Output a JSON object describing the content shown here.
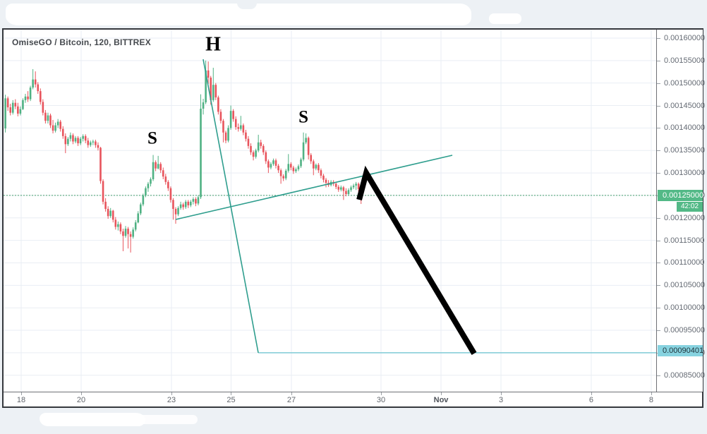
{
  "window": {
    "title": "OmiseGO / Bitcoin, 120, BITTREX"
  },
  "colors": {
    "page_bg": "#edf1f5",
    "chart_bg": "#ffffff",
    "grid": "#e9eef4",
    "up": "#4fb183",
    "down": "#e8545c",
    "wick_up": "#4fb183",
    "wick_down": "#e8545c",
    "dotted_last_price_line": "#43a06d",
    "trendline": "#2f9e8e",
    "target_line": "#7ecbd6",
    "arrow": "#000000",
    "letter": "#000000",
    "last_price_badge_bg": "#53b987",
    "countdown_badge_bg": "#53b987",
    "target_badge_bg": "#87d3e0",
    "axis_text": "#656b74"
  },
  "chart_data": {
    "type": "candlestick",
    "title": "OmiseGO / Bitcoin, 120, BITTREX",
    "symbol": "OmiseGO / Bitcoin",
    "interval": "120",
    "exchange": "BITTREX",
    "grid": true,
    "legend_position": "none",
    "ylim": [
      0.0008135,
      0.0016188
    ],
    "y_axis": {
      "side": "right",
      "ticks": [
        {
          "label": "0.00160000",
          "value": 0.0016
        },
        {
          "label": "0.00155000",
          "value": 0.00155
        },
        {
          "label": "0.00150000",
          "value": 0.0015
        },
        {
          "label": "0.00145000",
          "value": 0.00145
        },
        {
          "label": "0.00140000",
          "value": 0.0014
        },
        {
          "label": "0.00135000",
          "value": 0.00135
        },
        {
          "label": "0.00130000",
          "value": 0.0013
        },
        {
          "label": "0.00125000",
          "value": 0.00125
        },
        {
          "label": "0.00120000",
          "value": 0.0012
        },
        {
          "label": "0.00115000",
          "value": 0.00115
        },
        {
          "label": "0.00110000",
          "value": 0.0011
        },
        {
          "label": "0.00105000",
          "value": 0.00105
        },
        {
          "label": "0.00100000",
          "value": 0.001
        },
        {
          "label": "0.00095000",
          "value": 0.00095
        },
        {
          "label": "0.00090000",
          "value": 0.0009
        },
        {
          "label": "0.00085000",
          "value": 0.00085
        }
      ]
    },
    "x_axis": {
      "ticks": [
        {
          "label": "18",
          "pos": 0.027,
          "bold": false
        },
        {
          "label": "20",
          "pos": 0.1189,
          "bold": false
        },
        {
          "label": "23",
          "pos": 0.2573,
          "bold": false
        },
        {
          "label": "25",
          "pos": 0.3486,
          "bold": false
        },
        {
          "label": "27",
          "pos": 0.4411,
          "bold": false
        },
        {
          "label": "30",
          "pos": 0.5784,
          "bold": false
        },
        {
          "label": "Nov",
          "pos": 0.6703,
          "bold": true
        },
        {
          "label": "3",
          "pos": 0.7622,
          "bold": false
        },
        {
          "label": "6",
          "pos": 0.9005,
          "bold": false
        },
        {
          "label": "8",
          "pos": 0.9924,
          "bold": false
        }
      ]
    },
    "last_price": {
      "label": "0.00125000",
      "value": 0.00125,
      "countdown": "42:02"
    },
    "target_price": {
      "label": "0.00090401",
      "value": 0.00090401,
      "line_price": 0.0009,
      "line_start_pos": 0.3903
    },
    "annotations": {
      "letters": [
        {
          "text": "S",
          "pos": 0.2281,
          "price": 0.001377,
          "size": 25
        },
        {
          "text": "H",
          "pos": 0.3211,
          "price": 0.001586,
          "size": 28
        },
        {
          "text": "S",
          "pos": 0.4595,
          "price": 0.001424,
          "size": 25
        }
      ],
      "trendlines": [
        {
          "name": "neckline",
          "x1": 0.2638,
          "p1": 0.0011965,
          "x2": 0.6876,
          "p2": 0.0013394
        },
        {
          "name": "head-breakdown-line",
          "x1": 0.3059,
          "p1": 0.0015529,
          "x2": 0.3903,
          "p2": 0.0009
        }
      ],
      "arrow": {
        "points": [
          [
            0.5449,
            0.0012405
          ],
          [
            0.5557,
            0.0013001
          ],
          [
            0.7211,
            0.0008983
          ]
        ],
        "width": 8
      }
    },
    "candles": {
      "scale": 1e-05,
      "x0": 0.00281,
      "step": 0.003838,
      "body_w": 2.6,
      "ohlc": [
        [
          139.9,
          147.4,
          139.0,
          146.6
        ],
        [
          146.6,
          147.0,
          143.8,
          144.6
        ],
        [
          144.6,
          145.4,
          142.8,
          143.4
        ],
        [
          143.4,
          146.2,
          143.0,
          145.6
        ],
        [
          145.6,
          146.4,
          144.2,
          144.8
        ],
        [
          144.8,
          145.6,
          142.6,
          143.2
        ],
        [
          143.2,
          144.8,
          142.8,
          144.2
        ],
        [
          144.2,
          146.6,
          144.0,
          146.2
        ],
        [
          146.2,
          147.6,
          145.6,
          147.0
        ],
        [
          147.0,
          148.2,
          145.8,
          146.4
        ],
        [
          146.4,
          149.4,
          146.0,
          149.0
        ],
        [
          149.0,
          153.1,
          148.6,
          150.8
        ],
        [
          150.8,
          152.6,
          149.0,
          149.7
        ],
        [
          149.7,
          150.2,
          147.6,
          148.2
        ],
        [
          148.2,
          148.8,
          145.2,
          145.8
        ],
        [
          145.8,
          146.4,
          142.8,
          143.4
        ],
        [
          143.4,
          144.0,
          141.0,
          141.6
        ],
        [
          141.6,
          143.4,
          141.0,
          142.8
        ],
        [
          142.8,
          143.2,
          140.0,
          140.6
        ],
        [
          140.6,
          141.8,
          138.8,
          139.4
        ],
        [
          139.4,
          141.2,
          139.0,
          140.6
        ],
        [
          140.6,
          142.0,
          140.0,
          141.4
        ],
        [
          141.4,
          141.8,
          139.2,
          139.8
        ],
        [
          139.8,
          140.4,
          137.6,
          138.2
        ],
        [
          138.2,
          138.8,
          134.4,
          136.4
        ],
        [
          136.4,
          138.0,
          136.0,
          137.6
        ],
        [
          137.6,
          139.0,
          137.0,
          138.4
        ],
        [
          138.4,
          138.8,
          136.4,
          137.0
        ],
        [
          137.0,
          138.2,
          136.6,
          137.8
        ],
        [
          137.8,
          138.2,
          136.0,
          136.6
        ],
        [
          136.6,
          138.0,
          136.2,
          137.6
        ],
        [
          137.6,
          138.6,
          137.0,
          138.2
        ],
        [
          138.2,
          138.6,
          136.6,
          137.2
        ],
        [
          137.2,
          137.8,
          135.6,
          136.2
        ],
        [
          136.2,
          137.2,
          135.8,
          136.8
        ],
        [
          136.8,
          137.4,
          136.2,
          137.0
        ],
        [
          137.0,
          137.4,
          135.6,
          136.2
        ],
        [
          136.2,
          136.8,
          135.0,
          135.6
        ],
        [
          135.6,
          135.8,
          127.6,
          128.2
        ],
        [
          128.2,
          128.6,
          123.0,
          123.6
        ],
        [
          123.6,
          124.4,
          121.4,
          122.0
        ],
        [
          122.0,
          122.6,
          119.8,
          120.4
        ],
        [
          120.4,
          122.2,
          120.0,
          121.6
        ],
        [
          121.6,
          121.8,
          119.0,
          119.6
        ],
        [
          119.6,
          120.2,
          117.4,
          118.0
        ],
        [
          118.0,
          119.2,
          117.2,
          118.6
        ],
        [
          118.6,
          119.0,
          116.4,
          117.0
        ],
        [
          117.0,
          117.6,
          112.6,
          116.0
        ],
        [
          116.0,
          118.2,
          115.6,
          117.6
        ],
        [
          117.6,
          118.0,
          113.2,
          116.4
        ],
        [
          116.4,
          117.0,
          112.3,
          115.8
        ],
        [
          115.8,
          117.9,
          115.4,
          117.4
        ],
        [
          117.4,
          119.5,
          117.0,
          119.0
        ],
        [
          119.0,
          121.5,
          118.8,
          121.0
        ],
        [
          121.0,
          123.4,
          120.6,
          123.0
        ],
        [
          123.0,
          125.4,
          122.6,
          125.0
        ],
        [
          125.0,
          127.0,
          124.6,
          126.6
        ],
        [
          126.6,
          128.0,
          125.8,
          127.6
        ],
        [
          127.6,
          129.0,
          127.0,
          128.6
        ],
        [
          128.6,
          134.0,
          128.2,
          132.4
        ],
        [
          132.4,
          132.8,
          130.4,
          131.0
        ],
        [
          131.0,
          133.8,
          130.8,
          132.0
        ],
        [
          132.0,
          132.4,
          130.0,
          130.6
        ],
        [
          130.6,
          131.2,
          128.6,
          129.2
        ],
        [
          129.2,
          129.8,
          127.4,
          128.0
        ],
        [
          128.0,
          128.4,
          126.0,
          126.6
        ],
        [
          126.6,
          127.0,
          123.4,
          124.0
        ],
        [
          124.0,
          124.4,
          119.6,
          122.0
        ],
        [
          122.0,
          122.4,
          118.7,
          120.8
        ],
        [
          120.8,
          122.6,
          120.4,
          122.2
        ],
        [
          122.2,
          123.6,
          121.8,
          123.0
        ],
        [
          123.0,
          123.4,
          121.8,
          122.4
        ],
        [
          122.4,
          124.0,
          122.0,
          123.6
        ],
        [
          123.6,
          124.0,
          122.2,
          122.8
        ],
        [
          122.8,
          124.0,
          122.4,
          123.6
        ],
        [
          123.6,
          124.6,
          123.0,
          124.2
        ],
        [
          124.2,
          124.6,
          122.6,
          123.2
        ],
        [
          123.2,
          125.0,
          122.8,
          124.6
        ],
        [
          124.6,
          147.5,
          124.2,
          144.3
        ],
        [
          144.3,
          146.5,
          143.0,
          145.7
        ],
        [
          145.7,
          155.0,
          145.3,
          152.8
        ],
        [
          152.8,
          154.8,
          149.8,
          151.2
        ],
        [
          151.2,
          151.6,
          145.2,
          146.2
        ],
        [
          146.2,
          153.4,
          145.8,
          149.6
        ],
        [
          149.6,
          150.0,
          146.2,
          146.8
        ],
        [
          146.8,
          147.2,
          143.0,
          143.6
        ],
        [
          143.6,
          144.2,
          141.0,
          141.6
        ],
        [
          141.6,
          142.0,
          136.8,
          139.0
        ],
        [
          139.0,
          139.4,
          136.6,
          137.2
        ],
        [
          137.2,
          140.6,
          136.8,
          140.0
        ],
        [
          140.0,
          145.0,
          139.6,
          143.8
        ],
        [
          143.8,
          144.2,
          141.4,
          142.0
        ],
        [
          142.0,
          142.6,
          139.6,
          140.2
        ],
        [
          140.2,
          141.0,
          139.2,
          139.8
        ],
        [
          139.8,
          142.7,
          139.4,
          140.6
        ],
        [
          140.6,
          141.0,
          138.4,
          139.0
        ],
        [
          139.0,
          139.6,
          137.0,
          137.6
        ],
        [
          137.6,
          138.2,
          135.4,
          136.0
        ],
        [
          136.0,
          136.6,
          134.0,
          134.6
        ],
        [
          134.6,
          135.0,
          132.8,
          133.6
        ],
        [
          133.6,
          135.4,
          133.2,
          135.0
        ],
        [
          135.0,
          138.5,
          134.6,
          136.8
        ],
        [
          136.8,
          137.4,
          135.4,
          136.0
        ],
        [
          136.0,
          136.4,
          134.0,
          134.6
        ],
        [
          134.6,
          135.0,
          132.0,
          132.6
        ],
        [
          132.6,
          133.0,
          130.0,
          131.2
        ],
        [
          131.2,
          132.4,
          130.8,
          132.0
        ],
        [
          132.0,
          133.2,
          131.6,
          132.8
        ],
        [
          132.8,
          133.2,
          131.0,
          131.6
        ],
        [
          131.6,
          132.0,
          130.0,
          130.6
        ],
        [
          130.6,
          131.0,
          127.6,
          129.3
        ],
        [
          129.3,
          129.7,
          128.2,
          128.8
        ],
        [
          128.8,
          130.9,
          128.4,
          130.5
        ],
        [
          130.5,
          134.2,
          130.1,
          132.0
        ],
        [
          132.0,
          132.4,
          130.6,
          131.2
        ],
        [
          131.2,
          131.6,
          129.8,
          130.4
        ],
        [
          130.4,
          131.2,
          130.0,
          130.8
        ],
        [
          130.8,
          131.9,
          130.4,
          131.5
        ],
        [
          131.5,
          133.4,
          131.1,
          133.0
        ],
        [
          133.0,
          139.0,
          132.6,
          136.8
        ],
        [
          136.8,
          138.8,
          136.4,
          137.8
        ],
        [
          137.8,
          138.1,
          133.0,
          134.0
        ],
        [
          134.0,
          134.4,
          132.0,
          132.6
        ],
        [
          132.6,
          133.0,
          129.5,
          131.0
        ],
        [
          131.0,
          132.1,
          130.6,
          131.8
        ],
        [
          131.8,
          132.2,
          130.0,
          130.6
        ],
        [
          130.6,
          131.0,
          128.8,
          129.4
        ],
        [
          129.4,
          129.8,
          127.9,
          128.5
        ],
        [
          128.5,
          128.9,
          126.8,
          127.8
        ],
        [
          127.8,
          128.4,
          126.9,
          127.3
        ],
        [
          127.3,
          128.4,
          127.0,
          128.0
        ],
        [
          128.0,
          128.4,
          127.1,
          127.6
        ],
        [
          127.6,
          128.0,
          126.4,
          126.9
        ],
        [
          126.9,
          127.3,
          125.8,
          126.3
        ],
        [
          126.3,
          127.2,
          125.9,
          126.8
        ],
        [
          126.8,
          127.1,
          124.0,
          126.0
        ],
        [
          126.0,
          126.6,
          124.8,
          125.3
        ],
        [
          125.3,
          126.6,
          125.0,
          126.2
        ],
        [
          126.2,
          127.2,
          125.8,
          126.8
        ],
        [
          126.8,
          127.6,
          126.4,
          127.2
        ],
        [
          127.2,
          128.0,
          126.2,
          127.6
        ],
        [
          127.6,
          127.9,
          125.8,
          126.4
        ],
        [
          126.4,
          126.7,
          123.1,
          125.0
        ]
      ]
    }
  }
}
